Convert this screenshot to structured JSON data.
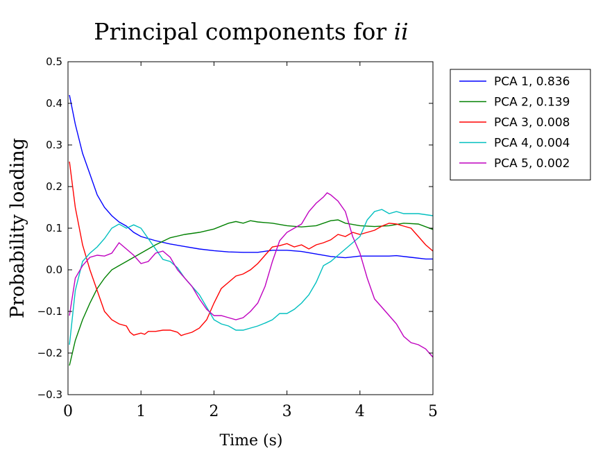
{
  "chart_data": {
    "type": "line",
    "title_main": "Principal components for ",
    "title_italic": "ii",
    "xlabel": "Time (s)",
    "ylabel": "Probability loading",
    "xlim": [
      0,
      5
    ],
    "ylim": [
      -0.3,
      0.5
    ],
    "xticks": [
      "0",
      "1",
      "2",
      "3",
      "4",
      "5"
    ],
    "yticks": [
      "−0.3",
      "−0.2",
      "−0.1",
      "0.0",
      "0.1",
      "0.2",
      "0.3",
      "0.4",
      "0.5"
    ],
    "legend_position": "outside-top-right",
    "series": [
      {
        "name": "PCA 1, 0.836",
        "color": "#0000ff",
        "points": [
          [
            0.02,
            0.42
          ],
          [
            0.1,
            0.35
          ],
          [
            0.2,
            0.28
          ],
          [
            0.3,
            0.23
          ],
          [
            0.4,
            0.18
          ],
          [
            0.5,
            0.15
          ],
          [
            0.6,
            0.13
          ],
          [
            0.7,
            0.115
          ],
          [
            0.8,
            0.105
          ],
          [
            0.9,
            0.09
          ],
          [
            1.0,
            0.08
          ],
          [
            1.2,
            0.07
          ],
          [
            1.4,
            0.062
          ],
          [
            1.6,
            0.056
          ],
          [
            1.8,
            0.05
          ],
          [
            2.0,
            0.046
          ],
          [
            2.2,
            0.043
          ],
          [
            2.4,
            0.042
          ],
          [
            2.6,
            0.042
          ],
          [
            2.8,
            0.047
          ],
          [
            3.0,
            0.047
          ],
          [
            3.2,
            0.044
          ],
          [
            3.4,
            0.038
          ],
          [
            3.6,
            0.032
          ],
          [
            3.8,
            0.029
          ],
          [
            4.0,
            0.033
          ],
          [
            4.2,
            0.033
          ],
          [
            4.4,
            0.033
          ],
          [
            4.5,
            0.034
          ],
          [
            4.7,
            0.03
          ],
          [
            4.9,
            0.026
          ],
          [
            5.0,
            0.026
          ]
        ]
      },
      {
        "name": "PCA 2, 0.139",
        "color": "#008000",
        "points": [
          [
            0.02,
            -0.23
          ],
          [
            0.1,
            -0.17
          ],
          [
            0.2,
            -0.12
          ],
          [
            0.3,
            -0.08
          ],
          [
            0.4,
            -0.045
          ],
          [
            0.5,
            -0.02
          ],
          [
            0.6,
            0.0
          ],
          [
            0.7,
            0.01
          ],
          [
            0.8,
            0.02
          ],
          [
            0.9,
            0.03
          ],
          [
            1.0,
            0.04
          ],
          [
            1.2,
            0.06
          ],
          [
            1.4,
            0.077
          ],
          [
            1.6,
            0.085
          ],
          [
            1.8,
            0.09
          ],
          [
            2.0,
            0.098
          ],
          [
            2.2,
            0.112
          ],
          [
            2.3,
            0.116
          ],
          [
            2.4,
            0.112
          ],
          [
            2.5,
            0.118
          ],
          [
            2.6,
            0.115
          ],
          [
            2.8,
            0.112
          ],
          [
            3.0,
            0.106
          ],
          [
            3.2,
            0.103
          ],
          [
            3.4,
            0.106
          ],
          [
            3.6,
            0.118
          ],
          [
            3.7,
            0.12
          ],
          [
            3.8,
            0.112
          ],
          [
            4.0,
            0.106
          ],
          [
            4.2,
            0.104
          ],
          [
            4.4,
            0.106
          ],
          [
            4.6,
            0.112
          ],
          [
            4.8,
            0.11
          ],
          [
            5.0,
            0.097
          ]
        ]
      },
      {
        "name": "PCA 3, 0.008",
        "color": "#ff0000",
        "points": [
          [
            0.02,
            0.26
          ],
          [
            0.1,
            0.15
          ],
          [
            0.2,
            0.06
          ],
          [
            0.3,
            0.0
          ],
          [
            0.4,
            -0.05
          ],
          [
            0.5,
            -0.1
          ],
          [
            0.6,
            -0.12
          ],
          [
            0.7,
            -0.13
          ],
          [
            0.8,
            -0.135
          ],
          [
            0.85,
            -0.15
          ],
          [
            0.9,
            -0.157
          ],
          [
            1.0,
            -0.152
          ],
          [
            1.05,
            -0.155
          ],
          [
            1.1,
            -0.148
          ],
          [
            1.2,
            -0.148
          ],
          [
            1.3,
            -0.145
          ],
          [
            1.4,
            -0.145
          ],
          [
            1.5,
            -0.15
          ],
          [
            1.55,
            -0.158
          ],
          [
            1.6,
            -0.155
          ],
          [
            1.7,
            -0.15
          ],
          [
            1.8,
            -0.14
          ],
          [
            1.9,
            -0.12
          ],
          [
            2.0,
            -0.08
          ],
          [
            2.1,
            -0.045
          ],
          [
            2.2,
            -0.03
          ],
          [
            2.3,
            -0.015
          ],
          [
            2.4,
            -0.01
          ],
          [
            2.5,
            0.0
          ],
          [
            2.6,
            0.015
          ],
          [
            2.7,
            0.035
          ],
          [
            2.8,
            0.055
          ],
          [
            2.9,
            0.058
          ],
          [
            3.0,
            0.063
          ],
          [
            3.1,
            0.055
          ],
          [
            3.2,
            0.06
          ],
          [
            3.3,
            0.05
          ],
          [
            3.4,
            0.06
          ],
          [
            3.5,
            0.065
          ],
          [
            3.6,
            0.072
          ],
          [
            3.7,
            0.085
          ],
          [
            3.8,
            0.08
          ],
          [
            3.9,
            0.09
          ],
          [
            4.0,
            0.085
          ],
          [
            4.1,
            0.09
          ],
          [
            4.2,
            0.095
          ],
          [
            4.3,
            0.105
          ],
          [
            4.4,
            0.112
          ],
          [
            4.5,
            0.11
          ],
          [
            4.6,
            0.105
          ],
          [
            4.7,
            0.1
          ],
          [
            4.8,
            0.08
          ],
          [
            4.9,
            0.06
          ],
          [
            5.0,
            0.045
          ]
        ]
      },
      {
        "name": "PCA 4, 0.004",
        "color": "#00bfbf",
        "points": [
          [
            0.02,
            -0.18
          ],
          [
            0.1,
            -0.05
          ],
          [
            0.2,
            0.02
          ],
          [
            0.3,
            0.04
          ],
          [
            0.4,
            0.055
          ],
          [
            0.5,
            0.075
          ],
          [
            0.6,
            0.1
          ],
          [
            0.7,
            0.11
          ],
          [
            0.8,
            0.1
          ],
          [
            0.9,
            0.108
          ],
          [
            1.0,
            0.1
          ],
          [
            1.1,
            0.075
          ],
          [
            1.2,
            0.05
          ],
          [
            1.3,
            0.025
          ],
          [
            1.4,
            0.02
          ],
          [
            1.5,
            0.005
          ],
          [
            1.6,
            -0.02
          ],
          [
            1.7,
            -0.04
          ],
          [
            1.8,
            -0.06
          ],
          [
            1.9,
            -0.09
          ],
          [
            2.0,
            -0.12
          ],
          [
            2.1,
            -0.13
          ],
          [
            2.2,
            -0.135
          ],
          [
            2.3,
            -0.145
          ],
          [
            2.4,
            -0.145
          ],
          [
            2.5,
            -0.14
          ],
          [
            2.6,
            -0.135
          ],
          [
            2.7,
            -0.128
          ],
          [
            2.8,
            -0.12
          ],
          [
            2.9,
            -0.105
          ],
          [
            3.0,
            -0.105
          ],
          [
            3.1,
            -0.095
          ],
          [
            3.2,
            -0.08
          ],
          [
            3.3,
            -0.06
          ],
          [
            3.4,
            -0.03
          ],
          [
            3.5,
            0.01
          ],
          [
            3.6,
            0.02
          ],
          [
            3.7,
            0.035
          ],
          [
            3.8,
            0.05
          ],
          [
            3.9,
            0.065
          ],
          [
            4.0,
            0.08
          ],
          [
            4.1,
            0.12
          ],
          [
            4.2,
            0.14
          ],
          [
            4.3,
            0.145
          ],
          [
            4.4,
            0.135
          ],
          [
            4.5,
            0.14
          ],
          [
            4.6,
            0.135
          ],
          [
            4.8,
            0.135
          ],
          [
            5.0,
            0.13
          ]
        ]
      },
      {
        "name": "PCA 5, 0.002",
        "color": "#bf00bf",
        "points": [
          [
            0.02,
            -0.11
          ],
          [
            0.1,
            -0.02
          ],
          [
            0.2,
            0.01
          ],
          [
            0.3,
            0.03
          ],
          [
            0.4,
            0.035
          ],
          [
            0.5,
            0.033
          ],
          [
            0.6,
            0.04
          ],
          [
            0.7,
            0.065
          ],
          [
            0.8,
            0.05
          ],
          [
            0.9,
            0.035
          ],
          [
            1.0,
            0.015
          ],
          [
            1.1,
            0.02
          ],
          [
            1.2,
            0.04
          ],
          [
            1.3,
            0.045
          ],
          [
            1.4,
            0.03
          ],
          [
            1.5,
            0.0
          ],
          [
            1.6,
            -0.02
          ],
          [
            1.7,
            -0.04
          ],
          [
            1.8,
            -0.07
          ],
          [
            1.9,
            -0.095
          ],
          [
            2.0,
            -0.11
          ],
          [
            2.1,
            -0.11
          ],
          [
            2.2,
            -0.115
          ],
          [
            2.3,
            -0.12
          ],
          [
            2.4,
            -0.115
          ],
          [
            2.5,
            -0.1
          ],
          [
            2.6,
            -0.08
          ],
          [
            2.7,
            -0.04
          ],
          [
            2.8,
            0.02
          ],
          [
            2.9,
            0.07
          ],
          [
            3.0,
            0.09
          ],
          [
            3.1,
            0.1
          ],
          [
            3.2,
            0.11
          ],
          [
            3.3,
            0.14
          ],
          [
            3.4,
            0.16
          ],
          [
            3.5,
            0.175
          ],
          [
            3.55,
            0.185
          ],
          [
            3.6,
            0.18
          ],
          [
            3.7,
            0.165
          ],
          [
            3.8,
            0.14
          ],
          [
            3.9,
            0.08
          ],
          [
            4.0,
            0.04
          ],
          [
            4.1,
            -0.02
          ],
          [
            4.2,
            -0.07
          ],
          [
            4.3,
            -0.09
          ],
          [
            4.4,
            -0.11
          ],
          [
            4.5,
            -0.13
          ],
          [
            4.6,
            -0.16
          ],
          [
            4.7,
            -0.175
          ],
          [
            4.8,
            -0.18
          ],
          [
            4.9,
            -0.19
          ],
          [
            5.0,
            -0.21
          ]
        ]
      }
    ]
  }
}
